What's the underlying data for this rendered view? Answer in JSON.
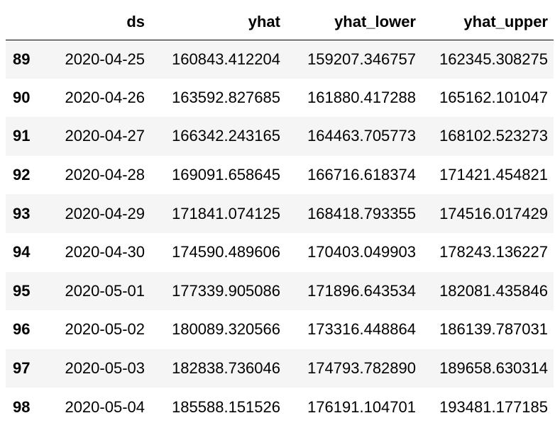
{
  "table": {
    "index_header": "",
    "columns": [
      "ds",
      "yhat",
      "yhat_lower",
      "yhat_upper"
    ],
    "rows": [
      {
        "index": "89",
        "ds": "2020-04-25",
        "yhat": "160843.412204",
        "yhat_lower": "159207.346757",
        "yhat_upper": "162345.308275"
      },
      {
        "index": "90",
        "ds": "2020-04-26",
        "yhat": "163592.827685",
        "yhat_lower": "161880.417288",
        "yhat_upper": "165162.101047"
      },
      {
        "index": "91",
        "ds": "2020-04-27",
        "yhat": "166342.243165",
        "yhat_lower": "164463.705773",
        "yhat_upper": "168102.523273"
      },
      {
        "index": "92",
        "ds": "2020-04-28",
        "yhat": "169091.658645",
        "yhat_lower": "166716.618374",
        "yhat_upper": "171421.454821"
      },
      {
        "index": "93",
        "ds": "2020-04-29",
        "yhat": "171841.074125",
        "yhat_lower": "168418.793355",
        "yhat_upper": "174516.017429"
      },
      {
        "index": "94",
        "ds": "2020-04-30",
        "yhat": "174590.489606",
        "yhat_lower": "170403.049903",
        "yhat_upper": "178243.136227"
      },
      {
        "index": "95",
        "ds": "2020-05-01",
        "yhat": "177339.905086",
        "yhat_lower": "171896.643534",
        "yhat_upper": "182081.435846"
      },
      {
        "index": "96",
        "ds": "2020-05-02",
        "yhat": "180089.320566",
        "yhat_lower": "173316.448864",
        "yhat_upper": "186139.787031"
      },
      {
        "index": "97",
        "ds": "2020-05-03",
        "yhat": "182838.736046",
        "yhat_lower": "174793.782890",
        "yhat_upper": "189658.630314"
      },
      {
        "index": "98",
        "ds": "2020-05-04",
        "yhat": "185588.151526",
        "yhat_lower": "176191.104701",
        "yhat_upper": "193481.177185"
      }
    ]
  },
  "colors": {
    "stripe": "#f5f5f5",
    "background": "#ffffff",
    "text": "#000000",
    "header_rule": "#000000"
  }
}
